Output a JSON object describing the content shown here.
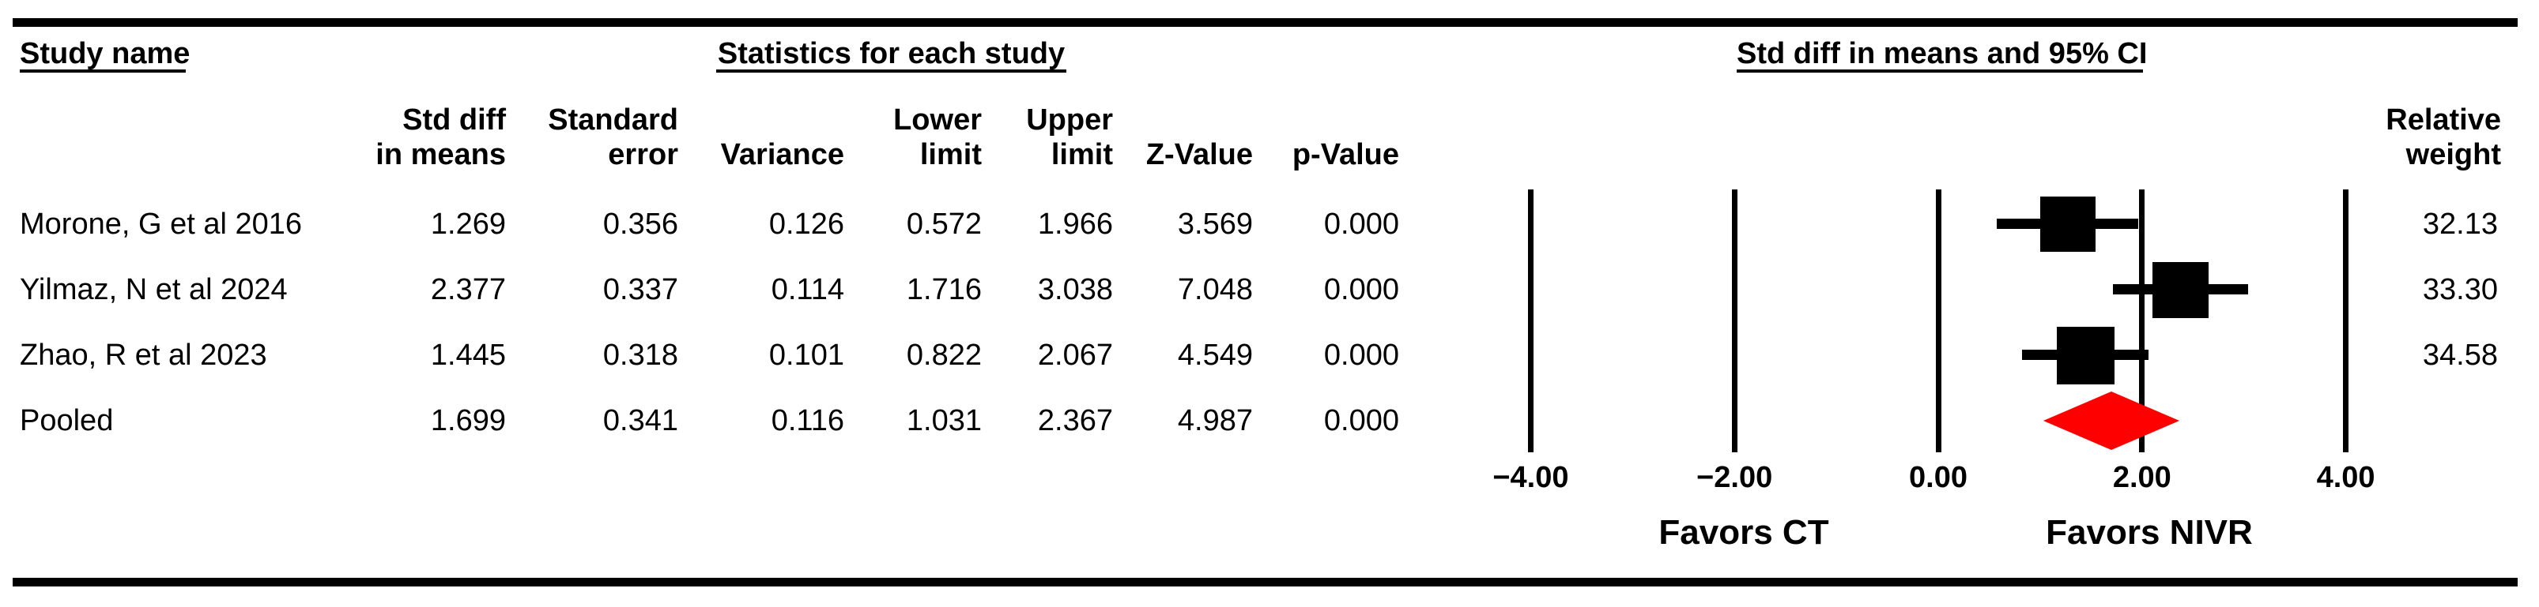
{
  "group_headers": {
    "study": "Study name",
    "statistics": "Statistics for each study",
    "ci": "Std diff in means and 95% CI"
  },
  "column_headers": {
    "std_diff": "Std diff\nin means",
    "std_err": "Standard\nerror",
    "variance": "\nVariance",
    "lower": "Lower\nlimit",
    "upper": "Upper\nlimit",
    "z": "\nZ-Value",
    "p": "\np-Value",
    "weight": "Relative\nweight"
  },
  "favors": {
    "left": "Favors CT",
    "right": "Favors NIVR"
  },
  "colors": {
    "marker": "#000000",
    "diamond": "#ff0000",
    "line": "#000000"
  },
  "chart_data": {
    "type": "forest",
    "effect_measure": "Std diff in means",
    "ci_level": "95% CI",
    "xlim": [
      -4,
      4
    ],
    "x_ticks": [
      {
        "value": -4,
        "label": "−4.00"
      },
      {
        "value": -2,
        "label": "−2.00"
      },
      {
        "value": 0,
        "label": "0.00"
      },
      {
        "value": 2,
        "label": "2.00"
      },
      {
        "value": 4,
        "label": "4.00"
      }
    ],
    "favors_left": "Favors CT",
    "favors_right": "Favors NIVR",
    "rows": [
      {
        "study": "Morone, G et al 2016",
        "std_diff": "1.269",
        "std_err": "0.356",
        "variance": "0.126",
        "lower": "0.572",
        "upper": "1.966",
        "z": "3.569",
        "p": "0.000",
        "weight": "32.13",
        "marker": "square"
      },
      {
        "study": "Yilmaz, N et al 2024",
        "std_diff": "2.377",
        "std_err": "0.337",
        "variance": "0.114",
        "lower": "1.716",
        "upper": "3.038",
        "z": "7.048",
        "p": "0.000",
        "weight": "33.30",
        "marker": "square"
      },
      {
        "study": "Zhao, R et al 2023",
        "std_diff": "1.445",
        "std_err": "0.318",
        "variance": "0.101",
        "lower": "0.822",
        "upper": "2.067",
        "z": "4.549",
        "p": "0.000",
        "weight": "34.58",
        "marker": "square"
      },
      {
        "study": "Pooled",
        "std_diff": "1.699",
        "std_err": "0.341",
        "variance": "0.116",
        "lower": "1.031",
        "upper": "2.367",
        "z": "4.987",
        "p": "0.000",
        "weight": "",
        "marker": "diamond"
      }
    ]
  }
}
